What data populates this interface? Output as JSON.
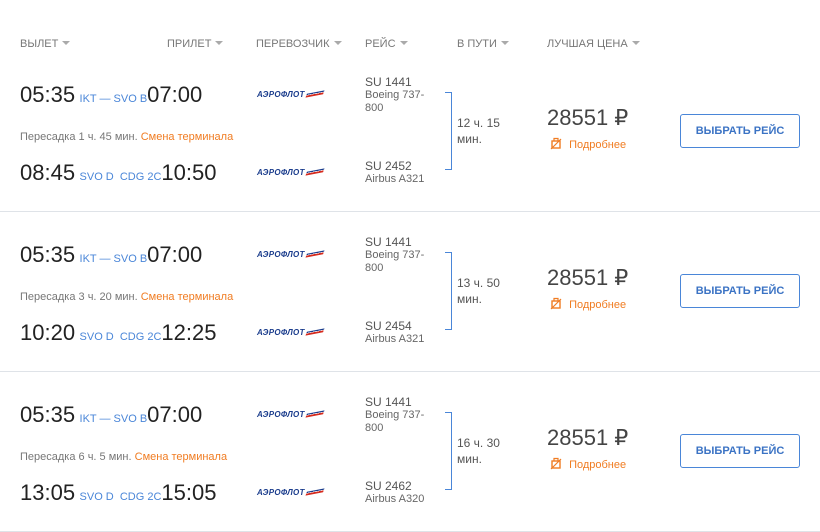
{
  "headers": {
    "departure": "ВЫЛЕТ",
    "arrival": "ПРИЛЕТ",
    "carrier": "ПЕРЕВОЗЧИК",
    "flight": "РЕЙС",
    "duration": "В ПУТИ",
    "best_price": "ЛУЧШАЯ ЦЕНА"
  },
  "airline_logo_text": "АЭРОФЛОТ",
  "rows": [
    {
      "seg1": {
        "dep": "05:35",
        "route": "IKT — SVO B",
        "arr": "07:00",
        "flight": "SU 1441",
        "plane": "Boeing 737-",
        "plane2": "800"
      },
      "transfer": "Пересадка 1 ч. 45 мин.",
      "terminal": "Смена терминала",
      "seg2": {
        "dep": "08:45",
        "route": "SVO D  CDG 2C",
        "arr": "10:50",
        "flight": "SU 2452",
        "plane": "Airbus A321"
      },
      "duration1": "12 ч. 15",
      "duration2": "мин.",
      "price": "28551 ₽",
      "more": "Подробнее",
      "button": "ВЫБРАТЬ РЕЙС"
    },
    {
      "seg1": {
        "dep": "05:35",
        "route": "IKT — SVO B",
        "arr": "07:00",
        "flight": "SU 1441",
        "plane": "Boeing 737-",
        "plane2": "800"
      },
      "transfer": "Пересадка 3 ч. 20 мин.",
      "terminal": "Смена терминала",
      "seg2": {
        "dep": "10:20",
        "route": "SVO D  CDG 2C",
        "arr": "12:25",
        "flight": "SU 2454",
        "plane": "Airbus A321"
      },
      "duration1": "13 ч. 50",
      "duration2": "мин.",
      "price": "28551 ₽",
      "more": "Подробнее",
      "button": "ВЫБРАТЬ РЕЙС"
    },
    {
      "seg1": {
        "dep": "05:35",
        "route": "IKT — SVO B",
        "arr": "07:00",
        "flight": "SU 1441",
        "plane": "Boeing 737-",
        "plane2": "800"
      },
      "transfer": "Пересадка 6 ч. 5 мин.",
      "terminal": "Смена терминала",
      "seg2": {
        "dep": "13:05",
        "route": "SVO D  CDG 2C",
        "arr": "15:05",
        "flight": "SU 2462",
        "plane": "Airbus A320"
      },
      "duration1": "16 ч. 30",
      "duration2": "мин.",
      "price": "28551 ₽",
      "more": "Подробнее",
      "button": "ВЫБРАТЬ РЕЙС"
    }
  ]
}
